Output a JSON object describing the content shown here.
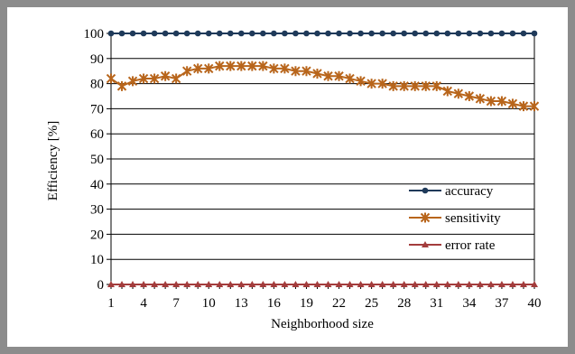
{
  "chart_data": {
    "type": "line",
    "xlabel": "Neighborhood size",
    "ylabel": "Efficiency [%]",
    "ylim": [
      0,
      100
    ],
    "yticks": [
      0,
      10,
      20,
      30,
      40,
      50,
      60,
      70,
      80,
      90,
      100
    ],
    "xlim": [
      1,
      40
    ],
    "xticks": [
      1,
      4,
      7,
      10,
      13,
      16,
      19,
      22,
      25,
      28,
      31,
      34,
      37,
      40
    ],
    "grid": "horizontal",
    "legend_position": "bottom-right",
    "x": [
      1,
      2,
      3,
      4,
      5,
      6,
      7,
      8,
      9,
      10,
      11,
      12,
      13,
      14,
      15,
      16,
      17,
      18,
      19,
      20,
      21,
      22,
      23,
      24,
      25,
      26,
      27,
      28,
      29,
      30,
      31,
      32,
      33,
      34,
      35,
      36,
      37,
      38,
      39,
      40
    ],
    "series": [
      {
        "name": "accuracy",
        "color": "#1f3a5a",
        "marker": "circle",
        "values": [
          100,
          100,
          100,
          100,
          100,
          100,
          100,
          100,
          100,
          100,
          100,
          100,
          100,
          100,
          100,
          100,
          100,
          100,
          100,
          100,
          100,
          100,
          100,
          100,
          100,
          100,
          100,
          100,
          100,
          100,
          100,
          100,
          100,
          100,
          100,
          100,
          100,
          100,
          100,
          100
        ]
      },
      {
        "name": "sensitivity",
        "color": "#b8651b",
        "marker": "star",
        "values": [
          82,
          79,
          81,
          82,
          82,
          83,
          82,
          85,
          86,
          86,
          87,
          87,
          87,
          87,
          87,
          86,
          86,
          85,
          85,
          84,
          83,
          83,
          82,
          81,
          80,
          80,
          79,
          79,
          79,
          79,
          79,
          77,
          76,
          75,
          74,
          73,
          73,
          72,
          71,
          71
        ]
      },
      {
        "name": "error rate",
        "color": "#a33c3c",
        "marker": "triangle",
        "values": [
          0,
          0,
          0,
          0,
          0,
          0,
          0,
          0,
          0,
          0,
          0,
          0,
          0,
          0,
          0,
          0,
          0,
          0,
          0,
          0,
          0,
          0,
          0,
          0,
          0,
          0,
          0,
          0,
          0,
          0,
          0,
          0,
          0,
          0,
          0,
          0,
          0,
          0,
          0,
          0
        ]
      }
    ]
  }
}
